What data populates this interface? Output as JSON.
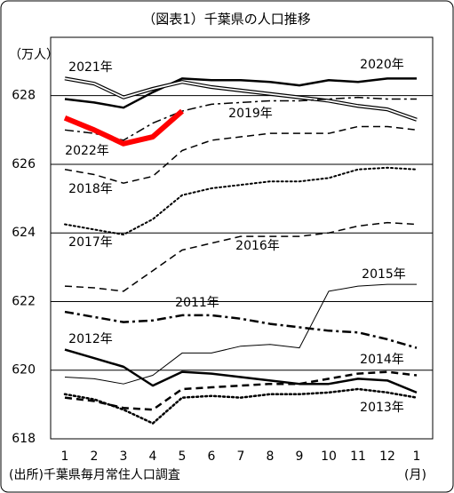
{
  "chart_data": {
    "type": "line",
    "title": "（図表1）千葉県の人口推移",
    "y_label": "（万人）",
    "x_label": "(月)",
    "source": "(出所)千葉県毎月常住人口調査",
    "categories": [
      "1",
      "2",
      "3",
      "4",
      "5",
      "6",
      "7",
      "8",
      "9",
      "10",
      "11",
      "12",
      "1"
    ],
    "ylim": [
      618,
      629.7
    ],
    "yticks": [
      618,
      620,
      622,
      624,
      626,
      628
    ],
    "grid": true,
    "series": [
      {
        "name": "2020年",
        "color": "#000000",
        "style": "solid",
        "width": 2.5,
        "values": [
          627.9,
          627.8,
          627.65,
          628.1,
          628.5,
          628.45,
          628.45,
          628.4,
          628.3,
          628.45,
          628.4,
          628.5,
          628.5
        ]
      },
      {
        "name": "2021年",
        "color": "#000000",
        "style": "double",
        "width": 1.2,
        "values": [
          628.5,
          628.35,
          627.95,
          628.2,
          628.4,
          628.25,
          628.15,
          628.05,
          627.95,
          627.85,
          627.7,
          627.6,
          627.3
        ]
      },
      {
        "name": "2019年",
        "color": "#000000",
        "style": "dashdot",
        "width": 1.5,
        "values": [
          627.0,
          626.9,
          626.7,
          627.2,
          627.55,
          627.75,
          627.8,
          627.85,
          627.85,
          627.9,
          627.95,
          627.9,
          627.9
        ]
      },
      {
        "name": "2022年",
        "color": "#ff0000",
        "style": "solid",
        "width": 6,
        "values": [
          627.35,
          627.0,
          626.6,
          626.8,
          627.55,
          null,
          null,
          null,
          null,
          null,
          null,
          null,
          null
        ]
      },
      {
        "name": "2018年",
        "color": "#000000",
        "style": "dashed",
        "width": 1.5,
        "values": [
          625.85,
          625.7,
          625.45,
          625.65,
          626.4,
          626.7,
          626.8,
          626.9,
          626.9,
          626.9,
          627.1,
          627.1,
          627.0
        ]
      },
      {
        "name": "2017年",
        "color": "#000000",
        "style": "dotted",
        "width": 2,
        "values": [
          624.25,
          624.1,
          623.95,
          624.4,
          625.1,
          625.3,
          625.4,
          625.5,
          625.5,
          625.6,
          625.85,
          625.9,
          625.85
        ]
      },
      {
        "name": "2016年",
        "color": "#000000",
        "style": "dashed",
        "width": 1.5,
        "values": [
          622.45,
          622.4,
          622.3,
          622.9,
          623.5,
          623.7,
          623.9,
          623.9,
          623.9,
          624.0,
          624.2,
          624.3,
          624.25
        ]
      },
      {
        "name": "2015年",
        "color": "#000000",
        "style": "solid",
        "width": 1,
        "values": [
          619.8,
          619.75,
          619.6,
          619.85,
          620.5,
          620.5,
          620.7,
          620.75,
          620.65,
          622.3,
          622.45,
          622.5,
          622.5
        ]
      },
      {
        "name": "2011年",
        "color": "#000000",
        "style": "dashdot",
        "width": 2.5,
        "values": [
          621.7,
          621.55,
          621.4,
          621.45,
          621.6,
          621.6,
          621.5,
          621.35,
          621.25,
          621.15,
          621.1,
          620.9,
          620.65
        ]
      },
      {
        "name": "2012年",
        "color": "#000000",
        "style": "solid",
        "width": 2.5,
        "values": [
          620.6,
          620.35,
          620.1,
          619.55,
          619.95,
          619.9,
          619.8,
          619.7,
          619.6,
          619.6,
          619.75,
          619.7,
          619.35
        ]
      },
      {
        "name": "2014年",
        "color": "#000000",
        "style": "dashed",
        "width": 2.5,
        "values": [
          619.2,
          619.1,
          618.9,
          618.85,
          619.45,
          619.5,
          619.55,
          619.6,
          619.6,
          619.75,
          619.9,
          619.95,
          619.85
        ]
      },
      {
        "name": "2013年",
        "color": "#000000",
        "style": "dotted",
        "width": 2.5,
        "values": [
          619.3,
          619.15,
          618.85,
          618.45,
          619.2,
          619.25,
          619.2,
          619.3,
          619.3,
          619.35,
          619.45,
          619.35,
          619.2
        ]
      }
    ]
  }
}
